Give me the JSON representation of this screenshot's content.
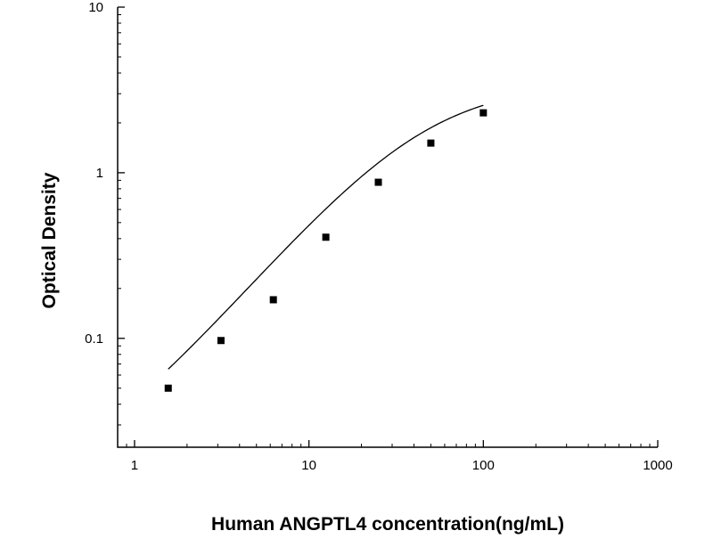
{
  "chart_data": {
    "type": "scatter",
    "title": "",
    "xlabel": "Human ANGPTL4 concentration(ng/mL)",
    "ylabel": "Optical Density",
    "x_scale": "log",
    "y_scale": "log",
    "xlim": [
      0.8,
      1000
    ],
    "ylim": [
      0.022,
      10
    ],
    "x_ticks": [
      {
        "value": 1,
        "label": "1"
      },
      {
        "value": 10,
        "label": "10"
      },
      {
        "value": 100,
        "label": "100"
      },
      {
        "value": 1000,
        "label": "1000"
      }
    ],
    "y_ticks": [
      {
        "value": 0.1,
        "label": "0.1"
      },
      {
        "value": 1,
        "label": "1"
      },
      {
        "value": 10,
        "label": "10"
      }
    ],
    "grid": false,
    "legend": "none",
    "marker": "square",
    "color": "#000000",
    "points": [
      {
        "x": 1.56,
        "y": 0.05
      },
      {
        "x": 3.13,
        "y": 0.097
      },
      {
        "x": 6.25,
        "y": 0.171
      },
      {
        "x": 12.5,
        "y": 0.408
      },
      {
        "x": 25,
        "y": 0.876
      },
      {
        "x": 50,
        "y": 1.51
      },
      {
        "x": 100,
        "y": 2.3
      }
    ],
    "fit_curve": {
      "model": "4PL",
      "x_range": [
        1.56,
        100
      ],
      "a": 0.0115,
      "b": 1.237,
      "c": 45.0,
      "d": 3.5
    }
  }
}
